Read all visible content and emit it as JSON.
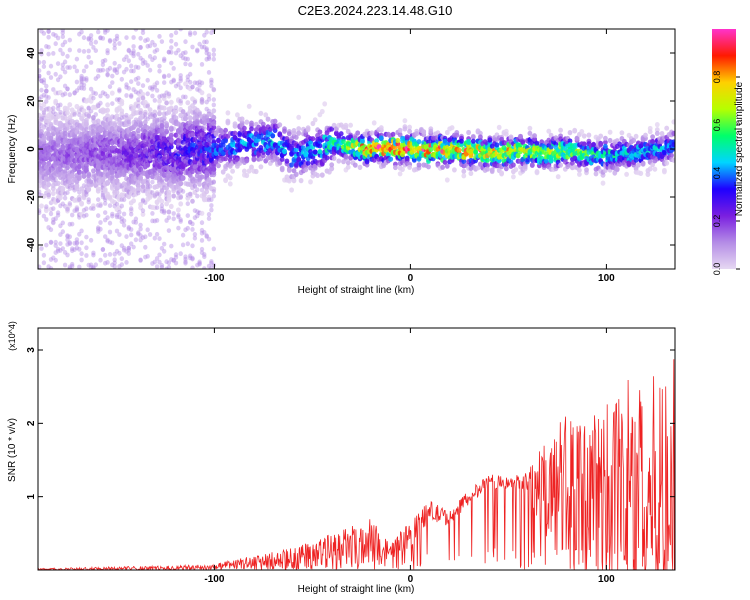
{
  "title": "C2E3.2024.223.14.48.G10",
  "colors": {
    "snr_line": "#ee2222",
    "colormap": [
      "#e6d8f2",
      "#b48ce6",
      "#7a1fe0",
      "#1e00ff",
      "#00d5ff",
      "#00ff6a",
      "#b6ff00",
      "#ffd000",
      "#ff1a00",
      "#ff33cc"
    ]
  },
  "chart_data": [
    {
      "type": "heatmap",
      "xlabel": "Height of straight line (km)",
      "ylabel": "Frequency (Hz)",
      "xlim": [
        -190,
        135
      ],
      "ylim": [
        -50,
        50
      ],
      "x_ticks": [
        -100,
        0,
        100
      ],
      "y_ticks": [
        -40,
        -20,
        0,
        20,
        40
      ],
      "x_tick_labels": [
        "-100",
        "0",
        "100"
      ],
      "y_tick_labels": [
        "-40",
        "-20",
        "0",
        "20",
        "40"
      ],
      "colorbar": {
        "label": "Normalized spectral amplitude",
        "range": [
          0,
          1
        ],
        "ticks": [
          0.0,
          0.2,
          0.4,
          0.6,
          0.8
        ],
        "tick_labels": [
          "0.0",
          "0.2",
          "0.4",
          "0.6",
          "0.8"
        ]
      },
      "ridge": {
        "x": [
          -190,
          -150,
          -100,
          -70,
          -60,
          -40,
          -20,
          0,
          40,
          80,
          100,
          135
        ],
        "freq": [
          -2,
          -2,
          0,
          4,
          -3,
          2,
          0,
          0,
          -1,
          -1,
          -3,
          1
        ],
        "peak_amplitude": [
          0.15,
          0.2,
          0.35,
          0.45,
          0.4,
          0.5,
          0.85,
          0.9,
          0.75,
          0.65,
          0.5,
          0.4
        ]
      }
    },
    {
      "type": "line",
      "xlabel": "Height of straight line (km)",
      "ylabel": "SNR (10 * v/v)",
      "y_scale_label": "(x10^4)",
      "xlim": [
        -190,
        135
      ],
      "ylim": [
        0,
        3.3
      ],
      "x_ticks": [
        -100,
        0,
        100
      ],
      "y_ticks": [
        1,
        2,
        3
      ],
      "x_tick_labels": [
        "-100",
        "0",
        "100"
      ],
      "y_tick_labels": [
        "1",
        "2",
        "3"
      ],
      "series": [
        {
          "x": [
            -190,
            -160,
            -120,
            -100,
            -80,
            -60,
            -40,
            -20,
            -10,
            0,
            10,
            20,
            30,
            40,
            55,
            60,
            70,
            80,
            90,
            100,
            110,
            120,
            130,
            135
          ],
          "y_envelope": [
            0.02,
            0.04,
            0.06,
            0.08,
            0.2,
            0.3,
            0.5,
            0.7,
            0.35,
            0.7,
            0.95,
            0.8,
            1.1,
            1.3,
            1.3,
            1.4,
            1.8,
            2.2,
            2.0,
            2.4,
            2.6,
            2.7,
            2.6,
            3.3
          ],
          "y_mean": [
            0.01,
            0.02,
            0.03,
            0.04,
            0.1,
            0.15,
            0.25,
            0.4,
            0.25,
            0.5,
            0.8,
            0.7,
            1.0,
            1.2,
            1.2,
            1.15,
            1.1,
            1.0,
            1.0,
            1.0,
            1.0,
            1.0,
            1.0,
            1.0
          ]
        }
      ]
    }
  ]
}
